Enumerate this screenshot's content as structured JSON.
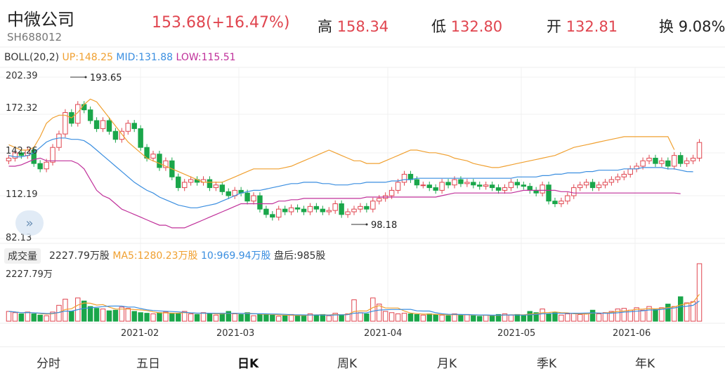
{
  "header": {
    "stock_name": "中微公司",
    "stock_code": "SH688012",
    "price_change": "153.68(+16.47%)",
    "high_label": "高",
    "high_value": "158.34",
    "low_label": "低",
    "low_value": "132.80",
    "open_label": "开",
    "open_value": "132.81",
    "turnover_label": "换",
    "turnover_value": "9.08%"
  },
  "boll": {
    "label": "BOLL(20,2)",
    "up": "UP:148.25",
    "mid": "MID:131.88",
    "low": "LOW:115.51"
  },
  "price_axis": [
    "202.39",
    "172.32",
    "142.26",
    "112.19",
    "82.13"
  ],
  "annotations": {
    "max": "193.65",
    "min": "98.18"
  },
  "volume": {
    "tag": "成交量",
    "value": "2227.79万股",
    "ma5": "MA5:1280.23万股",
    "ma10": "10:969.94万股",
    "after_hours": "盘后:985股",
    "axis_top": "2227.79万"
  },
  "x_axis": [
    "2021-02",
    "2021-03",
    "2021-04",
    "2021-05",
    "2021-06"
  ],
  "tabs": [
    "分时",
    "五日",
    "日K",
    "周K",
    "月K",
    "季K",
    "年K"
  ],
  "active_tab": "日K",
  "colors": {
    "up": "#e0454f",
    "down": "#1aa64a",
    "boll_up": "#f0a030",
    "boll_mid": "#3a8ee0",
    "boll_low": "#c0309a"
  },
  "chart_data": {
    "type": "candlestick",
    "y_range": [
      82.13,
      202.39
    ],
    "closes": [
      142,
      146,
      144,
      148,
      138,
      134,
      139,
      150,
      160,
      176,
      168,
      182,
      178,
      170,
      164,
      170,
      162,
      156,
      162,
      168,
      164,
      150,
      142,
      145,
      135,
      140,
      128,
      120,
      124,
      126,
      124,
      126,
      120,
      122,
      117,
      114,
      118,
      116,
      110,
      114,
      104,
      100,
      98,
      104,
      102,
      105,
      104,
      102,
      106,
      104,
      102,
      103,
      108,
      100,
      102,
      104,
      106,
      104,
      110,
      112,
      114,
      118,
      124,
      130,
      126,
      122,
      122,
      120,
      118,
      124,
      122,
      126,
      123,
      124,
      122,
      121,
      122,
      120,
      118,
      120,
      124,
      122,
      121,
      118,
      116,
      122,
      110,
      108,
      110,
      114,
      120,
      122,
      124,
      120,
      122,
      124,
      126,
      128,
      130,
      134,
      136,
      140,
      142,
      138,
      140,
      136,
      144,
      138,
      140,
      142,
      153.68
    ],
    "boll_up": [
      152,
      150,
      148,
      148,
      150,
      158,
      168,
      172,
      174,
      174,
      172,
      176,
      182,
      186,
      184,
      178,
      172,
      166,
      160,
      154,
      150,
      146,
      142,
      140,
      138,
      136,
      134,
      132,
      130,
      128,
      126,
      124,
      124,
      124,
      124,
      126,
      128,
      130,
      132,
      134,
      134,
      134,
      134,
      134,
      135,
      136,
      138,
      140,
      142,
      144,
      146,
      148,
      146,
      144,
      142,
      140,
      140,
      138,
      138,
      138,
      140,
      142,
      144,
      146,
      148,
      148,
      147,
      146,
      146,
      145,
      144,
      142,
      141,
      140,
      138,
      137,
      136,
      135,
      135,
      136,
      137,
      138,
      139,
      140,
      141,
      142,
      143,
      144,
      146,
      148,
      150,
      151,
      152,
      153,
      154,
      155,
      156,
      157,
      158,
      158,
      158,
      158,
      158,
      158,
      158,
      158,
      148.25
    ],
    "boll_mid": [
      144,
      143,
      143,
      144,
      146,
      150,
      154,
      156,
      157,
      157,
      156,
      156,
      155,
      152,
      148,
      144,
      140,
      136,
      132,
      128,
      124,
      121,
      118,
      116,
      113,
      111,
      109,
      107,
      106,
      105,
      105,
      106,
      107,
      108,
      110,
      112,
      114,
      116,
      117,
      118,
      118,
      119,
      120,
      121,
      122,
      123,
      123,
      124,
      124,
      124,
      123,
      123,
      122,
      122,
      122,
      123,
      123,
      124,
      124,
      124,
      124,
      125,
      125,
      126,
      126,
      127,
      127,
      127,
      127,
      127,
      127,
      127,
      127,
      127,
      127,
      127,
      127,
      127,
      127,
      127,
      127,
      128,
      128,
      128,
      128,
      129,
      129,
      130,
      130,
      131,
      131,
      131,
      132,
      132,
      133,
      133,
      133,
      133,
      134,
      134,
      134,
      135,
      135,
      135,
      135,
      134,
      134,
      133,
      132,
      131.88
    ],
    "boll_low": [
      136,
      136,
      137,
      139,
      141,
      142,
      140,
      140,
      140,
      140,
      140,
      138,
      134,
      126,
      118,
      114,
      112,
      108,
      104,
      102,
      100,
      98,
      96,
      94,
      92,
      92,
      90,
      90,
      90,
      92,
      94,
      96,
      98,
      100,
      102,
      104,
      106,
      108,
      108,
      108,
      108,
      108,
      108,
      110,
      110,
      111,
      111,
      112,
      112,
      112,
      112,
      112,
      112,
      112,
      112,
      112,
      112,
      113,
      113,
      113,
      113,
      113,
      113,
      113,
      113,
      113,
      113,
      113,
      113,
      114,
      115,
      116,
      116,
      116,
      116,
      116,
      116,
      116,
      116,
      116,
      116,
      117,
      118,
      118,
      118,
      118,
      118,
      118,
      117,
      117,
      116,
      116,
      116,
      116,
      116,
      116,
      116,
      116,
      116,
      116,
      116,
      116,
      116,
      116,
      116,
      116,
      116,
      115.51
    ],
    "volumes": [
      0.16,
      0.14,
      0.12,
      0.15,
      0.12,
      0.1,
      0.09,
      0.15,
      0.26,
      0.36,
      0.16,
      0.38,
      0.33,
      0.24,
      0.21,
      0.2,
      0.17,
      0.18,
      0.23,
      0.21,
      0.16,
      0.14,
      0.13,
      0.12,
      0.14,
      0.15,
      0.12,
      0.13,
      0.16,
      0.12,
      0.11,
      0.14,
      0.12,
      0.1,
      0.13,
      0.16,
      0.12,
      0.11,
      0.14,
      0.09,
      0.12,
      0.11,
      0.1,
      0.08,
      0.09,
      0.11,
      0.1,
      0.09,
      0.12,
      0.1,
      0.11,
      0.09,
      0.13,
      0.1,
      0.12,
      0.35,
      0.14,
      0.12,
      0.38,
      0.28,
      0.16,
      0.14,
      0.12,
      0.13,
      0.12,
      0.11,
      0.1,
      0.12,
      0.11,
      0.1,
      0.09,
      0.12,
      0.1,
      0.11,
      0.09,
      0.08,
      0.1,
      0.09,
      0.11,
      0.12,
      0.1,
      0.11,
      0.09,
      0.16,
      0.14,
      0.2,
      0.12,
      0.14,
      0.1,
      0.12,
      0.13,
      0.11,
      0.12,
      0.18,
      0.12,
      0.14,
      0.16,
      0.2,
      0.21,
      0.18,
      0.22,
      0.18,
      0.24,
      0.19,
      0.22,
      0.28,
      0.24,
      0.4,
      0.3,
      0.32,
      0.94
    ]
  }
}
